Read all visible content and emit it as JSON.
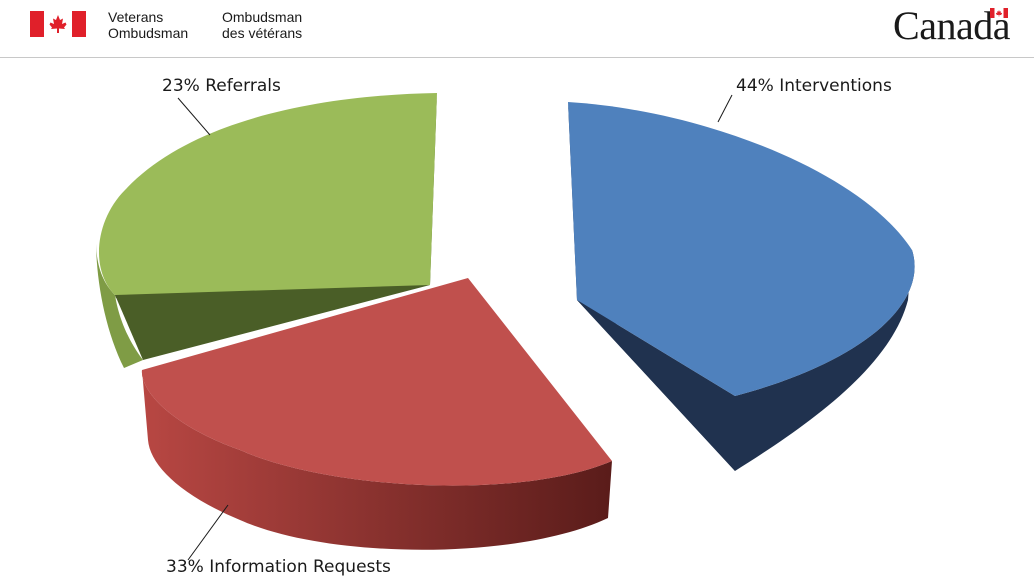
{
  "header": {
    "org_en_line1": "Veterans",
    "org_en_line2": "Ombudsman",
    "org_fr_line1": "Ombudsman",
    "org_fr_line2": "des vétérans",
    "wordmark": "Canada",
    "flag_color": "#e0202a",
    "flag_icon": "canada-flag-icon"
  },
  "chart_data": {
    "type": "pie",
    "style": "3d-exploded",
    "slices": [
      {
        "label": "44% Interventions",
        "value": 44,
        "color": "#4f81bd",
        "side_color": "#20324f"
      },
      {
        "label": "33% Information Requests",
        "value": 33,
        "color": "#c0504d",
        "side_color": "#7a2828"
      },
      {
        "label": "23% Referrals",
        "value": 23,
        "color": "#9bbb59",
        "side_color": "#4a5e27"
      }
    ]
  }
}
